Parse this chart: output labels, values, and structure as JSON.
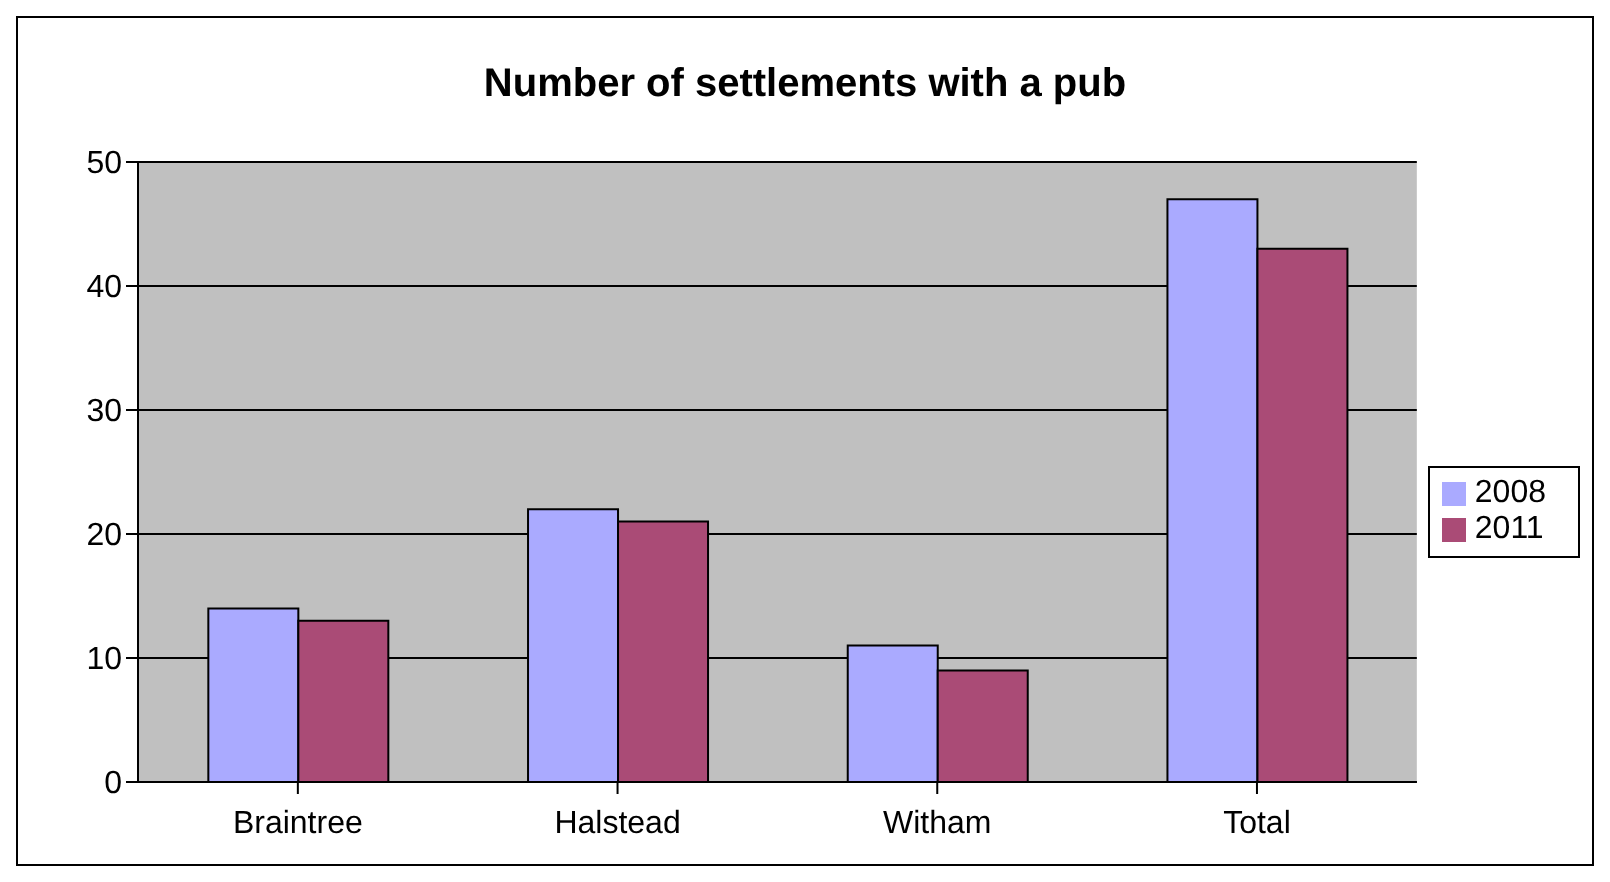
{
  "chart_data": {
    "type": "bar",
    "title": "Number of settlements with a pub",
    "categories": [
      "Braintree",
      "Halstead",
      "Witham",
      "Total"
    ],
    "series": [
      {
        "name": "2008",
        "color": "#aaaaff",
        "values": [
          14,
          22,
          11,
          47
        ]
      },
      {
        "name": "2011",
        "color": "#aa4b76",
        "values": [
          13,
          21,
          9,
          43
        ]
      }
    ],
    "ylim": [
      0,
      50
    ],
    "yticks": [
      0,
      10,
      20,
      30,
      40,
      50
    ],
    "grid": "y",
    "legend": "right"
  }
}
